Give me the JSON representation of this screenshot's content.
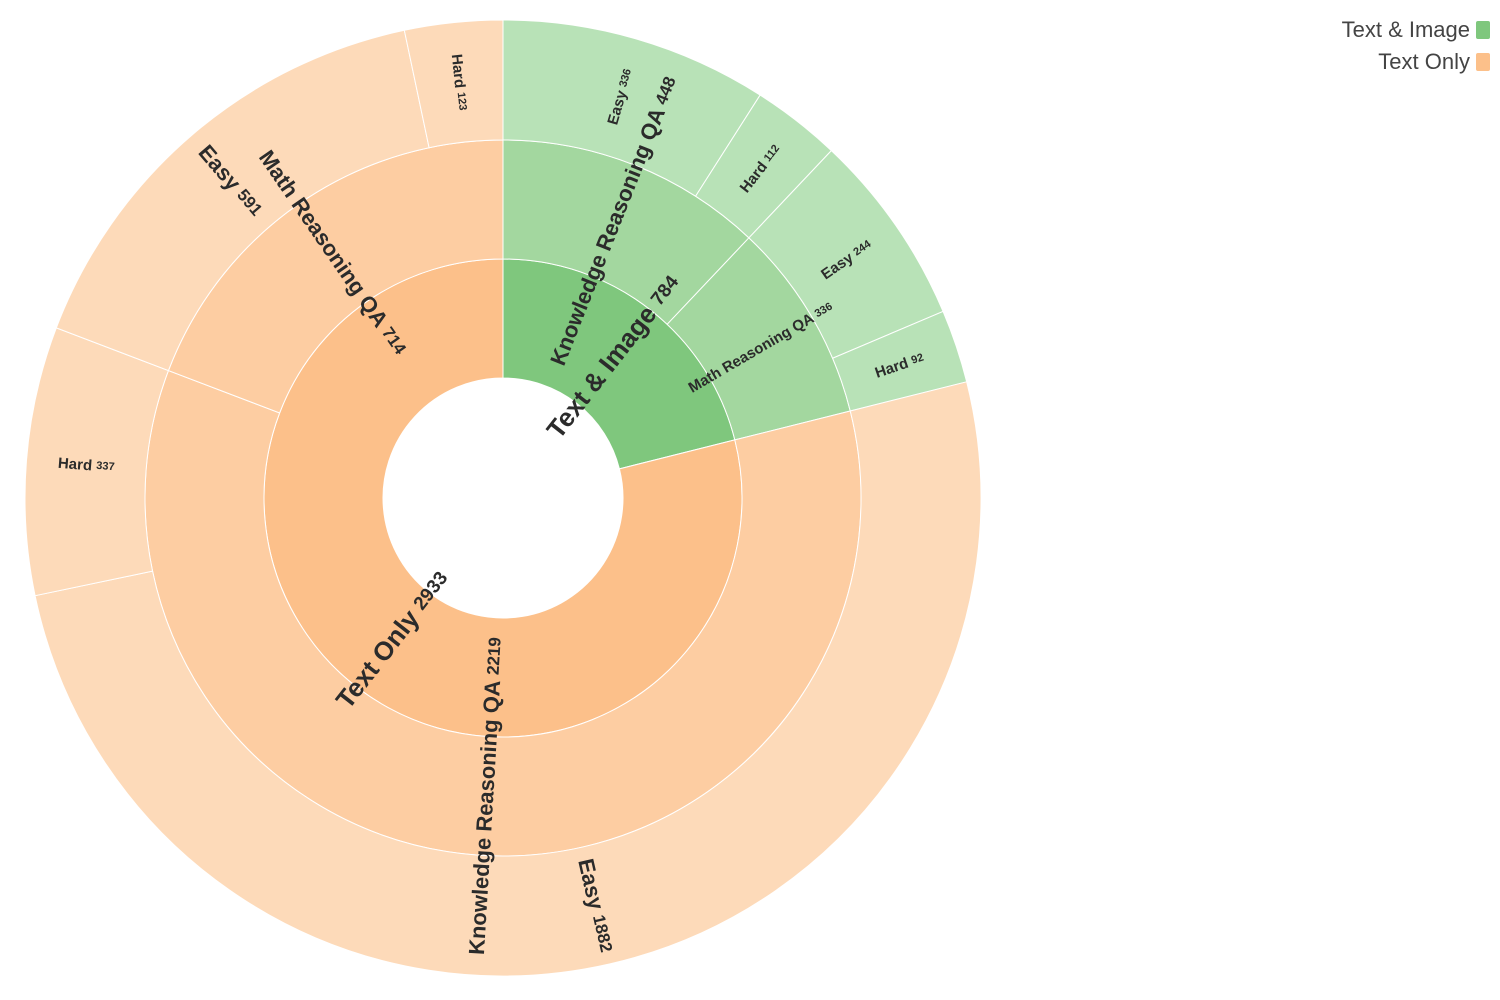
{
  "chart_data": {
    "type": "sunburst",
    "title": "",
    "colors": {
      "Text & Image": [
        "#7fc77d",
        "#a3d79f",
        "#b8e2b7"
      ],
      "Text Only": [
        "#fcc08a",
        "#fdcda2",
        "#fddab9"
      ]
    },
    "legend": {
      "placement": "top-right",
      "items": [
        {
          "label": "Text & Image",
          "color": "#7fc77d"
        },
        {
          "label": "Text Only",
          "color": "#fcc08a"
        }
      ]
    },
    "hierarchy": [
      {
        "name": "Text & Image",
        "value": 784,
        "children": [
          {
            "name": "Knowledge Reasoning QA",
            "value": 448,
            "children": [
              {
                "name": "Easy",
                "value": 336
              },
              {
                "name": "Hard",
                "value": 112
              }
            ]
          },
          {
            "name": "Math Reasoning QA",
            "value": 336,
            "children": [
              {
                "name": "Easy",
                "value": 244
              },
              {
                "name": "Hard",
                "value": 92
              }
            ]
          }
        ]
      },
      {
        "name": "Text Only",
        "value": 2933,
        "children": [
          {
            "name": "Knowledge Reasoning QA",
            "value": 2219,
            "children": [
              {
                "name": "Easy",
                "value": 1882
              },
              {
                "name": "Hard",
                "value": 337
              }
            ]
          },
          {
            "name": "Math Reasoning QA",
            "value": 714,
            "children": [
              {
                "name": "Easy",
                "value": 591
              },
              {
                "name": "Hard",
                "value": 123
              }
            ]
          }
        ]
      }
    ]
  }
}
